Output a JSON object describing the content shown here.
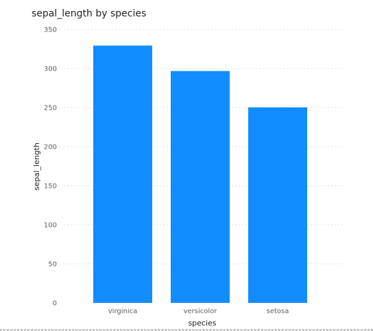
{
  "chart_data": {
    "type": "bar",
    "title": "sepal_length by species",
    "xlabel": "species",
    "ylabel": "sepal_length",
    "categories": [
      "virginica",
      "versicolor",
      "setosa"
    ],
    "values": [
      329.4,
      296.8,
      250.3
    ],
    "ylim": [
      0,
      350
    ],
    "yticks": [
      0,
      50,
      100,
      150,
      200,
      250,
      300,
      350
    ],
    "grid": true,
    "legend": "none",
    "colors": {
      "bar": "#118DFF",
      "gridline": "#E1DFDD",
      "tick_text": "#605E5C",
      "title_text": "#252423"
    }
  }
}
